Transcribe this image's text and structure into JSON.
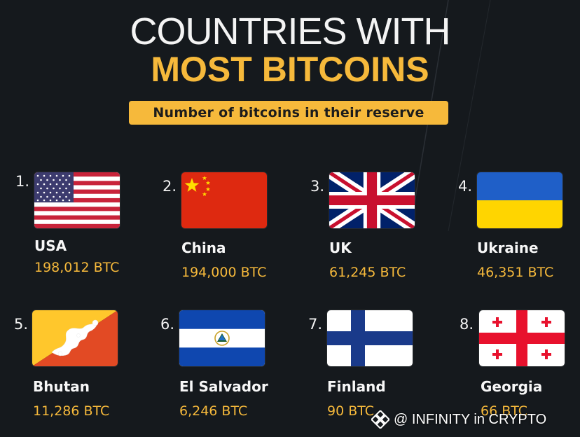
{
  "header": {
    "title_line1": "COUNTRIES WITH",
    "title_line2": "MOST BITCOINS",
    "subtitle": "Number of bitcoins in their reserve"
  },
  "countries": [
    {
      "rank": "1.",
      "name": "USA",
      "value": "198,012 BTC",
      "flag": "usa-flag"
    },
    {
      "rank": "2.",
      "name": "China",
      "value": "194,000 BTC",
      "flag": "china-flag"
    },
    {
      "rank": "3.",
      "name": "UK",
      "value": "61,245 BTC",
      "flag": "uk-flag"
    },
    {
      "rank": "4.",
      "name": "Ukraine",
      "value": "46,351 BTC",
      "flag": "ukraine-flag"
    },
    {
      "rank": "5.",
      "name": "Bhutan",
      "value": "11,286 BTC",
      "flag": "bhutan-flag"
    },
    {
      "rank": "6.",
      "name": "El Salvador",
      "value": "6,246 BTC",
      "flag": "el-salvador-flag"
    },
    {
      "rank": "7.",
      "name": "Finland",
      "value": "90 BTC",
      "flag": "finland-flag"
    },
    {
      "rank": "8.",
      "name": "Georgia",
      "value": "66 BTC",
      "flag": "georgia-flag"
    }
  ],
  "watermark": {
    "text": "@ INFINITY in CRYPTO",
    "icon": "binance-diamond-icon"
  },
  "colors": {
    "background": "#15191d",
    "accent": "#f6b93b",
    "text": "#f4f4f4"
  }
}
